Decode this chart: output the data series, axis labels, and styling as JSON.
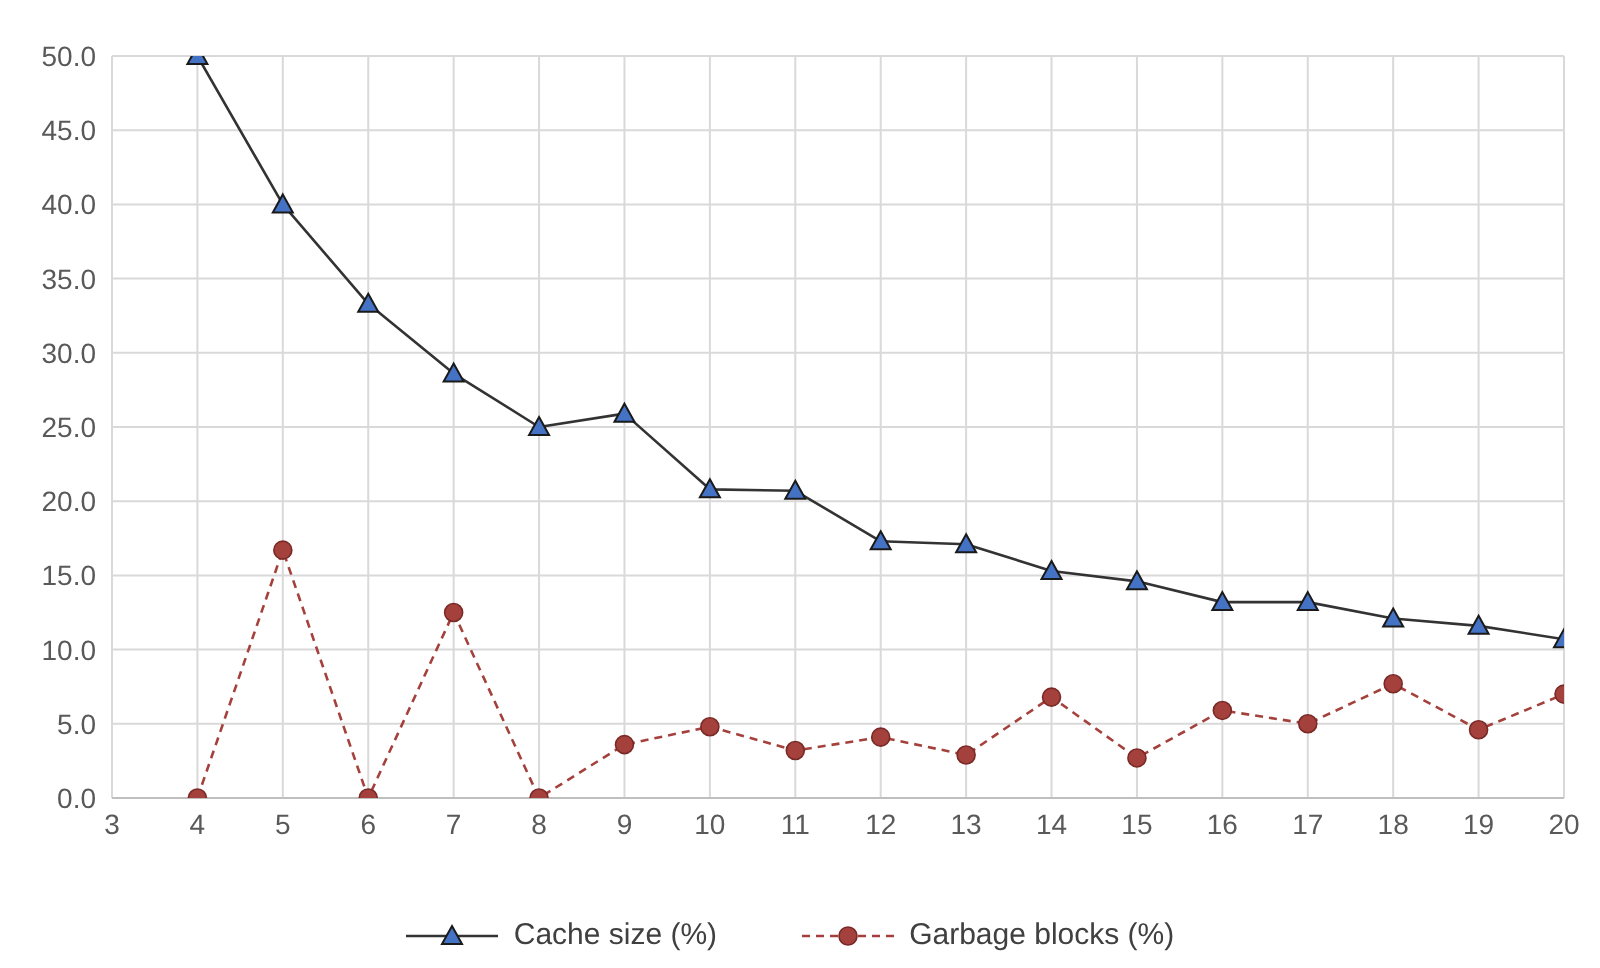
{
  "chart_data": {
    "type": "line",
    "x": [
      4,
      5,
      6,
      7,
      8,
      9,
      10,
      11,
      12,
      13,
      14,
      15,
      16,
      17,
      18,
      19,
      20
    ],
    "series": [
      {
        "name": "Cache size (%)",
        "color": "#333333",
        "marker": "triangle",
        "line_style": "solid",
        "values": [
          50,
          40,
          33.3,
          28.6,
          25,
          25.9,
          20.8,
          20.7,
          17.3,
          17.1,
          15.3,
          14.6,
          13.2,
          13.2,
          12.1,
          11.6,
          10.7
        ]
      },
      {
        "name": "Garbage blocks (%)",
        "color": "#a5413c",
        "marker": "circle",
        "line_style": "dashed",
        "values": [
          0,
          16.7,
          0,
          12.5,
          0,
          3.6,
          4.8,
          3.2,
          4.1,
          2.9,
          6.8,
          2.7,
          5.9,
          5.0,
          7.7,
          4.6,
          7.0
        ]
      }
    ],
    "xlim": [
      3,
      20
    ],
    "xticks": [
      3,
      4,
      5,
      6,
      7,
      8,
      9,
      10,
      11,
      12,
      13,
      14,
      15,
      16,
      17,
      18,
      19,
      20
    ],
    "ylim": [
      0,
      50
    ],
    "yticks": [
      {
        "value": 0,
        "label": "0.0"
      },
      {
        "value": 5,
        "label": "5.0"
      },
      {
        "value": 10,
        "label": "10.0"
      },
      {
        "value": 15,
        "label": "15.0"
      },
      {
        "value": 20,
        "label": "20.0"
      },
      {
        "value": 25,
        "label": "25.0"
      },
      {
        "value": 30,
        "label": "30.0"
      },
      {
        "value": 35,
        "label": "35.0"
      },
      {
        "value": 40,
        "label": "40.0"
      },
      {
        "value": 45,
        "label": "45.0"
      },
      {
        "value": 50,
        "label": "50.0"
      }
    ],
    "grid": true,
    "legend": "bottom"
  }
}
